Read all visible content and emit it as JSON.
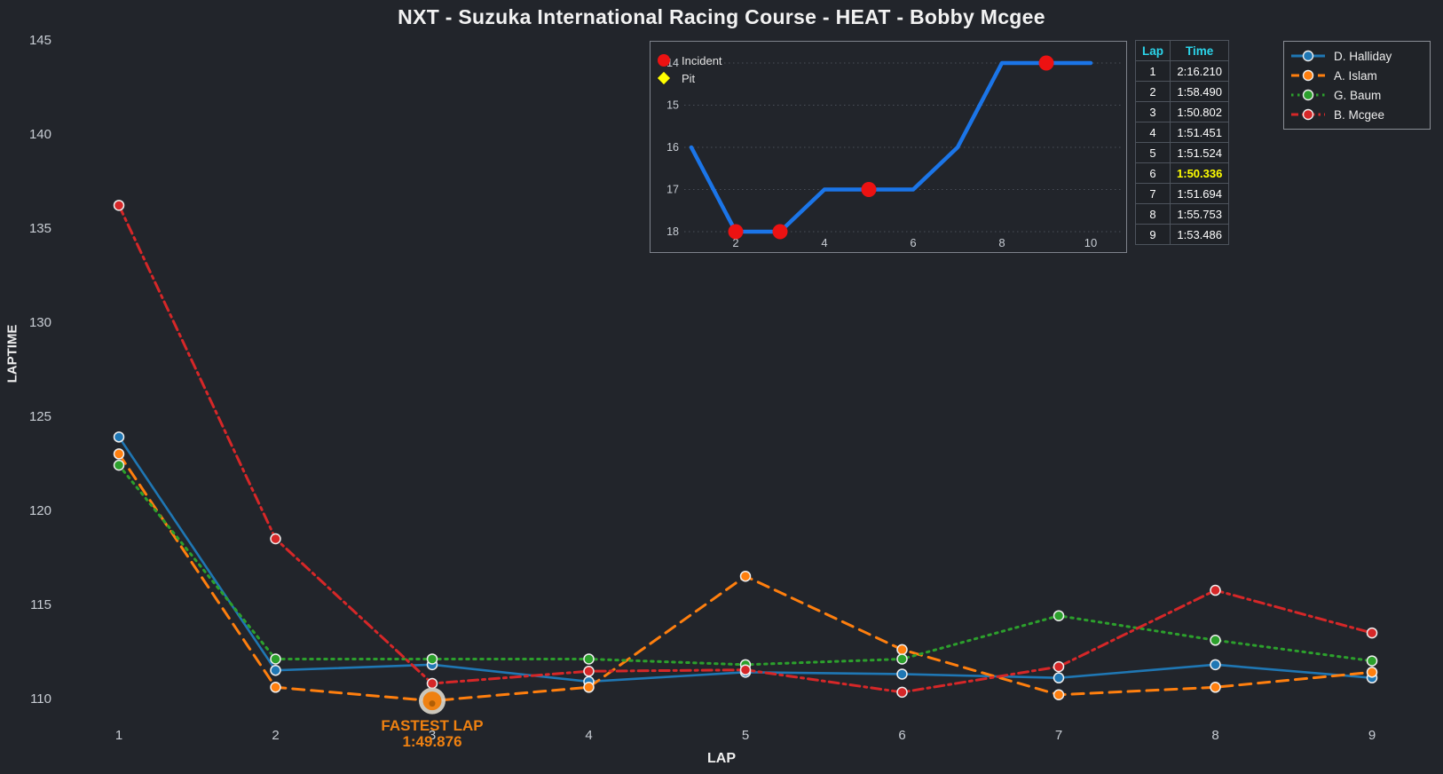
{
  "title": "NXT - Suzuka International Racing Course - HEAT - Bobby Mcgee",
  "colors": {
    "background": "#22252b",
    "tick_text": "#c8cdd4",
    "table_header": "#2bd4ea",
    "highlight_time": "#ffff00",
    "incident": "#ec1212",
    "pit": "#ffff00",
    "inset_line": "#1b75e8",
    "annotation": "#ef8111"
  },
  "chart_data": [
    {
      "type": "line",
      "title": "NXT - Suzuka International Racing Course - HEAT - Bobby Mcgee",
      "xlabel": "LAP",
      "ylabel": "LAPTIME",
      "x": [
        1,
        2,
        3,
        4,
        5,
        6,
        7,
        8,
        9
      ],
      "xticks": [
        1,
        2,
        3,
        4,
        5,
        6,
        7,
        8,
        9
      ],
      "yticks": [
        145,
        140,
        135,
        130,
        125,
        120,
        115,
        110
      ],
      "ylim": [
        108.3,
        146.2
      ],
      "grid": false,
      "legend_position": "top-right",
      "series": [
        {
          "name": "D. Halliday",
          "color": "#1f77b4",
          "style": "solid",
          "values": [
            123.9,
            111.5,
            111.8,
            110.9,
            111.4,
            111.3,
            111.1,
            111.8,
            111.1
          ]
        },
        {
          "name": "A. Islam",
          "color": "#ff7f0e",
          "style": "dashed",
          "values": [
            123.0,
            110.6,
            109.876,
            110.6,
            116.5,
            112.6,
            110.2,
            110.6,
            111.4
          ]
        },
        {
          "name": "G. Baum",
          "color": "#2ca02c",
          "style": "dotted",
          "values": [
            122.4,
            112.1,
            112.1,
            112.1,
            111.8,
            112.1,
            114.4,
            113.1,
            112.0
          ]
        },
        {
          "name": "B. Mcgee",
          "color": "#d62728",
          "style": "dashdot",
          "values": [
            136.21,
            118.49,
            110.802,
            111.451,
            111.524,
            110.336,
            111.694,
            115.753,
            113.486
          ]
        }
      ],
      "annotation": {
        "line1": "FASTEST LAP",
        "line2": "1:49.876",
        "lap": 3,
        "series_index": 1,
        "value": 109.876
      }
    },
    {
      "type": "line",
      "name": "position-inset",
      "x": [
        1,
        2,
        3,
        4,
        5,
        6,
        7,
        8,
        9,
        10
      ],
      "values": [
        16,
        18,
        18,
        17,
        17,
        17,
        16,
        14,
        14,
        14
      ],
      "y_inverted": true,
      "yticks": [
        14,
        15,
        16,
        17,
        18
      ],
      "xticks": [
        2,
        4,
        6,
        8,
        10
      ],
      "grid": true,
      "incident_laps": [
        2,
        3,
        5,
        9
      ],
      "pit_laps": [],
      "legend": [
        {
          "label": "Incident",
          "marker": "circle",
          "color": "#ec1212"
        },
        {
          "label": "Pit",
          "marker": "diamond",
          "color": "#ffff00"
        }
      ]
    }
  ],
  "lap_table": {
    "headers": [
      "Lap",
      "Time"
    ],
    "rows": [
      [
        "1",
        "2:16.210"
      ],
      [
        "2",
        "1:58.490"
      ],
      [
        "3",
        "1:50.802"
      ],
      [
        "4",
        "1:51.451"
      ],
      [
        "5",
        "1:51.524"
      ],
      [
        "6",
        "1:50.336"
      ],
      [
        "7",
        "1:51.694"
      ],
      [
        "8",
        "1:55.753"
      ],
      [
        "9",
        "1:53.486"
      ]
    ],
    "highlight_row": 6
  }
}
